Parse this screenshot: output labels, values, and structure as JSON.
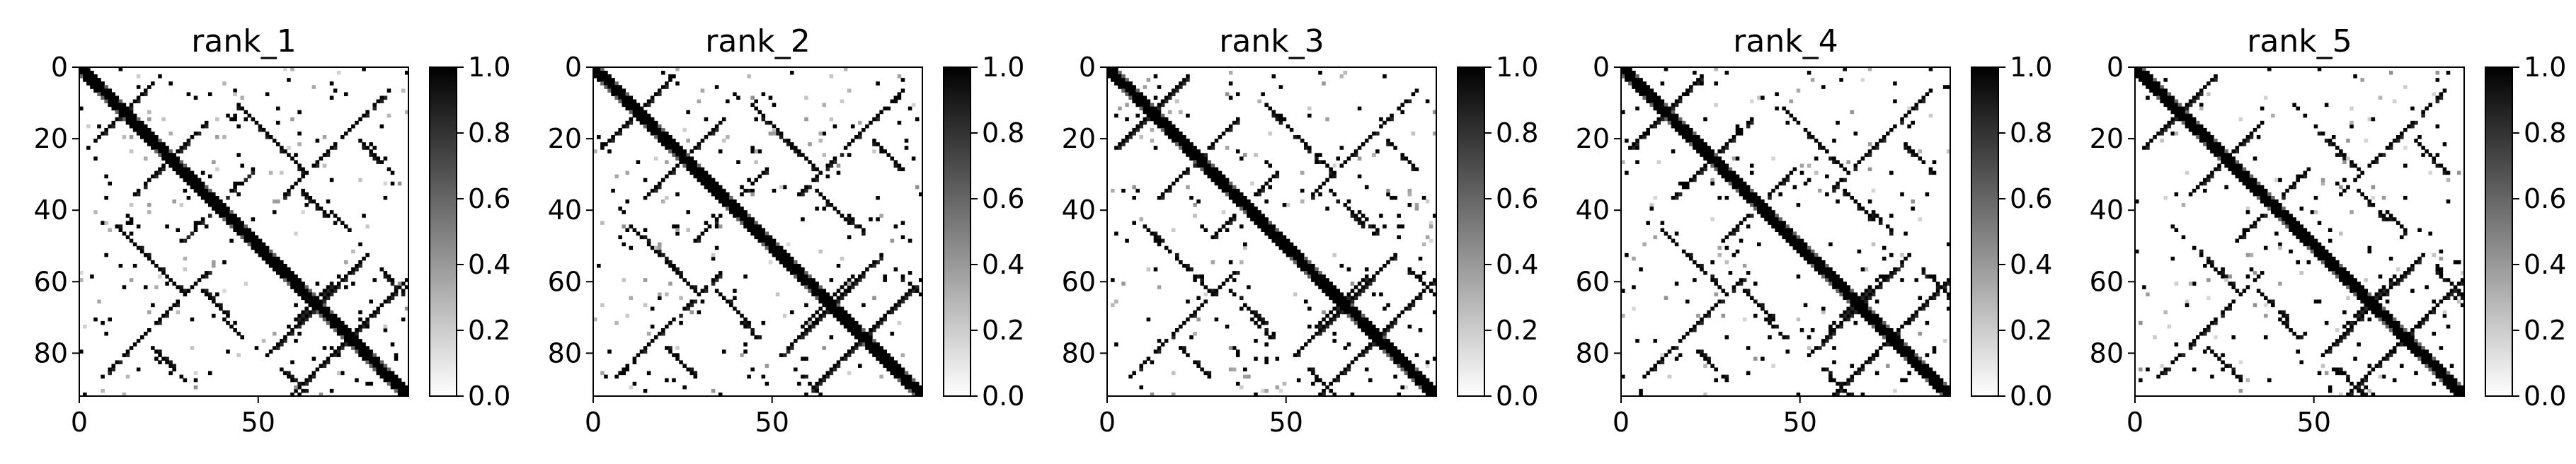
{
  "chart_data": [
    {
      "type": "heatmap",
      "title": "rank_1",
      "x_ticks": [
        "0",
        "50"
      ],
      "y_ticks": [
        "0",
        "20",
        "40",
        "60",
        "80"
      ],
      "matrix_size": 92,
      "colorbar_range": [
        0,
        1
      ],
      "colorbar_ticks": [
        "0.0",
        "0.2",
        "0.4",
        "0.6",
        "0.8",
        "1.0"
      ],
      "colormap": "gray_r"
    },
    {
      "type": "heatmap",
      "title": "rank_2",
      "x_ticks": [
        "0",
        "50"
      ],
      "y_ticks": [
        "0",
        "20",
        "40",
        "60",
        "80"
      ],
      "matrix_size": 92,
      "colorbar_range": [
        0,
        1
      ],
      "colorbar_ticks": [
        "0.0",
        "0.2",
        "0.4",
        "0.6",
        "0.8",
        "1.0"
      ],
      "colormap": "gray_r"
    },
    {
      "type": "heatmap",
      "title": "rank_3",
      "x_ticks": [
        "0",
        "50"
      ],
      "y_ticks": [
        "0",
        "20",
        "40",
        "60",
        "80"
      ],
      "matrix_size": 92,
      "colorbar_range": [
        0,
        1
      ],
      "colorbar_ticks": [
        "0.0",
        "0.2",
        "0.4",
        "0.6",
        "0.8",
        "1.0"
      ],
      "colormap": "gray_r"
    },
    {
      "type": "heatmap",
      "title": "rank_4",
      "x_ticks": [
        "0",
        "50"
      ],
      "y_ticks": [
        "0",
        "20",
        "40",
        "60",
        "80"
      ],
      "matrix_size": 92,
      "colorbar_range": [
        0,
        1
      ],
      "colorbar_ticks": [
        "0.0",
        "0.2",
        "0.4",
        "0.6",
        "0.8",
        "1.0"
      ],
      "colormap": "gray_r"
    },
    {
      "type": "heatmap",
      "title": "rank_5",
      "x_ticks": [
        "0",
        "50"
      ],
      "y_ticks": [
        "0",
        "20",
        "40",
        "60",
        "80"
      ],
      "matrix_size": 92,
      "colorbar_range": [
        0,
        1
      ],
      "colorbar_ticks": [
        "0.0",
        "0.2",
        "0.4",
        "0.6",
        "0.8",
        "1.0"
      ],
      "colormap": "gray_r"
    }
  ]
}
